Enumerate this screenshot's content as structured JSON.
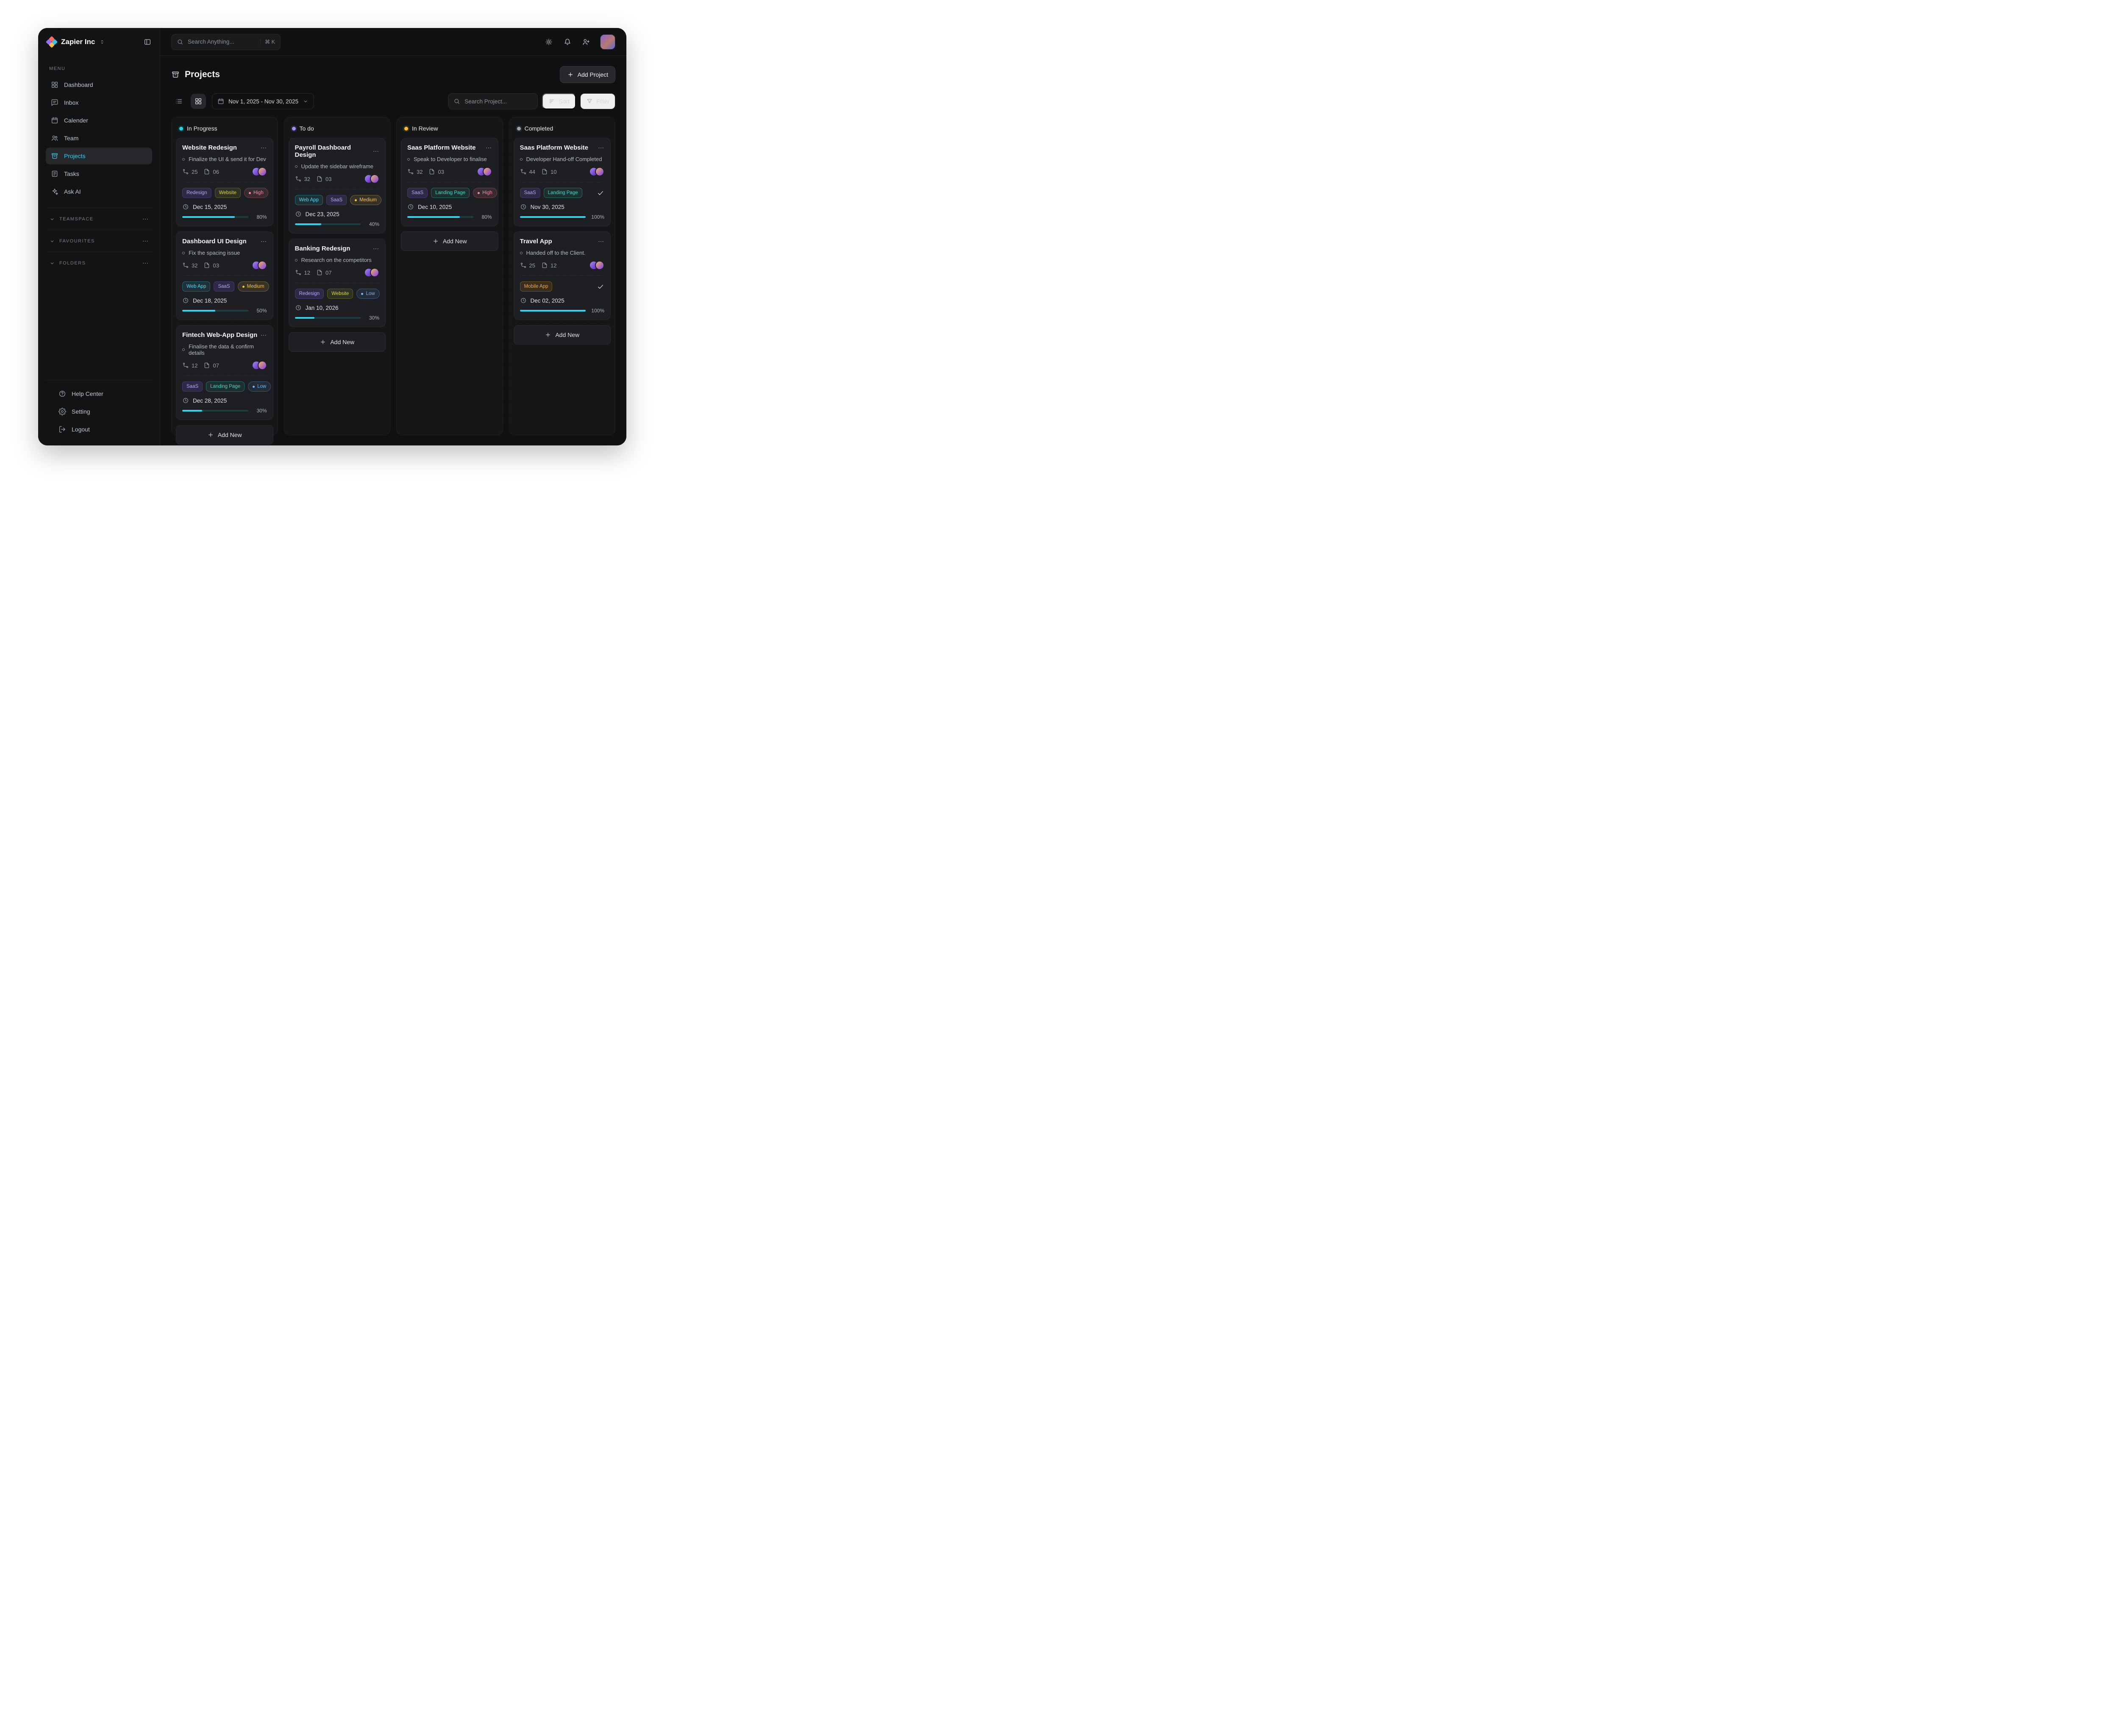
{
  "company": {
    "name": "Zapier Inc"
  },
  "topbar": {
    "search_placeholder": "Search Anything...",
    "shortcut": "⌘ K"
  },
  "sidebar": {
    "menu_label": "MENU",
    "items": [
      {
        "label": "Dashboard"
      },
      {
        "label": "Inbox"
      },
      {
        "label": "Calender"
      },
      {
        "label": "Team"
      },
      {
        "label": "Projects"
      },
      {
        "label": "Tasks"
      },
      {
        "label": "Ask AI"
      }
    ],
    "sections": [
      {
        "label": "TEAMSPACE"
      },
      {
        "label": "FAVOURITES"
      },
      {
        "label": "FOLDERS"
      }
    ],
    "footer": [
      {
        "label": "Help Center"
      },
      {
        "label": "Setting"
      },
      {
        "label": "Logout"
      }
    ]
  },
  "page": {
    "title": "Projects",
    "add_project_label": "Add Project",
    "date_range": "Nov 1, 2025 - Nov 30, 2025",
    "search_placeholder": "Search Project...",
    "sort_label": "Sort",
    "filter_label": "Filter",
    "add_new_label": "Add New"
  },
  "colors": {
    "accent_cyan": "#22d3ee",
    "tag_purple": "#a78bfa",
    "tag_olive": "#d6d44e",
    "tag_cyan": "#22d3ee",
    "tag_teal": "#2dd4bf",
    "tag_orange": "#f59e0b",
    "priority_high": "#f47183",
    "priority_medium": "#f5bf4f",
    "priority_low": "#60a5fa",
    "col_inprogress_dot": "#22d3ee",
    "col_todo_dot": "#a78bfa",
    "col_inreview_dot": "#fbbf24",
    "col_completed_dot": "#9ca3af"
  },
  "board": {
    "columns": [
      {
        "title": "In Progress",
        "cards": [
          {
            "title": "Website Redesign",
            "task": "Finalize the UI & send it for Dev",
            "subtasks": "25",
            "files": "06",
            "avatars": 2,
            "tags": [
              {
                "label": "Redesign",
                "color": "#a78bfa"
              },
              {
                "label": "Website",
                "color": "#d6d44e"
              }
            ],
            "priority": {
              "label": "High",
              "color": "#f47183"
            },
            "due_date": "Dec 15, 2025",
            "progress": 80,
            "progress_label": "80%"
          },
          {
            "title": "Dashboard UI Design",
            "task": "Fix the spacing issue",
            "subtasks": "32",
            "files": "03",
            "avatars": 2,
            "tags": [
              {
                "label": "Web App",
                "color": "#22d3ee"
              },
              {
                "label": "SaaS",
                "color": "#a78bfa"
              }
            ],
            "priority": {
              "label": "Medium",
              "color": "#f5bf4f"
            },
            "due_date": "Dec 18, 2025",
            "progress": 50,
            "progress_label": "50%"
          },
          {
            "title": "Fintech Web-App Design",
            "task": "Finalise the data & confirm details",
            "subtasks": "12",
            "files": "07",
            "avatars": 2,
            "tags": [
              {
                "label": "SaaS",
                "color": "#a78bfa"
              },
              {
                "label": "Landing Page",
                "color": "#2dd4bf"
              }
            ],
            "priority": {
              "label": "Low",
              "color": "#60a5fa"
            },
            "due_date": "Dec 28, 2025",
            "progress": 30,
            "progress_label": "30%"
          }
        ]
      },
      {
        "title": "To do",
        "cards": [
          {
            "title": "Payroll Dashboard Design",
            "task": "Update the sidebar wireframe",
            "subtasks": "32",
            "files": "03",
            "avatars": 2,
            "tags": [
              {
                "label": "Web App",
                "color": "#22d3ee"
              },
              {
                "label": "SaaS",
                "color": "#a78bfa"
              }
            ],
            "priority": {
              "label": "Medium",
              "color": "#f5bf4f"
            },
            "due_date": "Dec 23, 2025",
            "progress": 40,
            "progress_label": "40%"
          },
          {
            "title": "Banking Redesign",
            "task": "Research on the competitors",
            "subtasks": "12",
            "files": "07",
            "avatars": 2,
            "tags": [
              {
                "label": "Redesign",
                "color": "#a78bfa"
              },
              {
                "label": "Website",
                "color": "#d6d44e"
              }
            ],
            "priority": {
              "label": "Low",
              "color": "#60a5fa"
            },
            "due_date": "Jan 10, 2026",
            "progress": 30,
            "progress_label": "30%"
          }
        ]
      },
      {
        "title": "In Review",
        "cards": [
          {
            "title": "Saas Platform Website",
            "task": "Speak to Developer to finalise",
            "subtasks": "32",
            "files": "03",
            "avatars": 2,
            "tags": [
              {
                "label": "SaaS",
                "color": "#a78bfa"
              },
              {
                "label": "Landing Page",
                "color": "#2dd4bf"
              }
            ],
            "priority": {
              "label": "High",
              "color": "#f47183"
            },
            "due_date": "Dec 10, 2025",
            "progress": 80,
            "progress_label": "80%"
          }
        ]
      },
      {
        "title": "Completed",
        "cards": [
          {
            "title": "Saas Platform Website",
            "task": "Developer Hand-off Completed",
            "subtasks": "44",
            "files": "10",
            "avatars": 2,
            "completed": true,
            "tags": [
              {
                "label": "SaaS",
                "color": "#a78bfa"
              },
              {
                "label": "Landing Page",
                "color": "#2dd4bf"
              }
            ],
            "due_date": "Nov 30, 2025",
            "progress": 100,
            "progress_label": "100%"
          },
          {
            "title": "Travel App",
            "task": "Handed off to the Client.",
            "subtasks": "25",
            "files": "12",
            "avatars": 2,
            "completed": true,
            "tags": [
              {
                "label": "Mobile App",
                "color": "#f59e0b"
              }
            ],
            "due_date": "Dec 02, 2025",
            "progress": 100,
            "progress_label": "100%"
          }
        ]
      }
    ]
  }
}
